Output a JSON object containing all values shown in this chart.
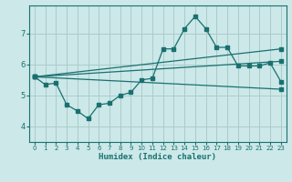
{
  "xlabel": "Humidex (Indice chaleur)",
  "ylabel": "",
  "background_color": "#cce8e8",
  "grid_color": "#aacccc",
  "line_color": "#1a7070",
  "xlim": [
    -0.5,
    23.5
  ],
  "ylim": [
    3.5,
    7.9
  ],
  "yticks": [
    4,
    5,
    6,
    7
  ],
  "xticks": [
    0,
    1,
    2,
    3,
    4,
    5,
    6,
    7,
    8,
    9,
    10,
    11,
    12,
    13,
    14,
    15,
    16,
    17,
    18,
    19,
    20,
    21,
    22,
    23
  ],
  "line1_x": [
    0,
    1,
    2,
    3,
    4,
    5,
    6,
    7,
    8,
    9,
    10,
    11,
    12,
    13,
    14,
    15,
    16,
    17,
    18,
    19,
    20,
    21,
    22,
    23
  ],
  "line1_y": [
    5.6,
    5.35,
    5.4,
    4.7,
    4.5,
    4.25,
    4.7,
    4.75,
    5.0,
    5.1,
    5.5,
    5.55,
    6.5,
    6.5,
    7.15,
    7.55,
    7.15,
    6.55,
    6.55,
    5.95,
    5.95,
    5.95,
    6.05,
    5.45
  ],
  "line2_x": [
    0,
    23
  ],
  "line2_y": [
    5.6,
    6.5
  ],
  "line3_x": [
    0,
    23
  ],
  "line3_y": [
    5.6,
    6.1
  ],
  "line4_x": [
    0,
    23
  ],
  "line4_y": [
    5.6,
    5.2
  ]
}
